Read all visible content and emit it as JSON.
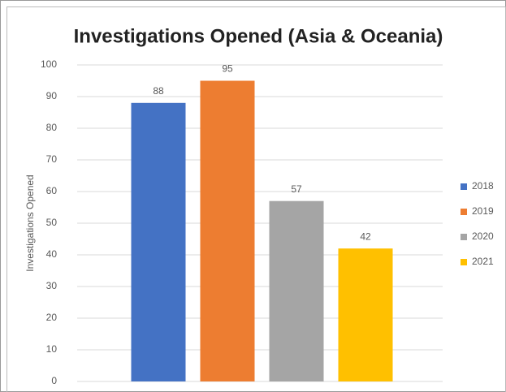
{
  "chart_data": {
    "type": "bar",
    "title": "Investigations Opened (Asia & Oceania)",
    "y_label": "Investigations Opened",
    "categories": [
      null
    ],
    "series": [
      {
        "name": "2018",
        "color": "#4472c4",
        "values": [
          88
        ]
      },
      {
        "name": "2019",
        "color": "#ed7d31",
        "values": [
          95
        ]
      },
      {
        "name": "2020",
        "color": "#a5a5a5",
        "values": [
          57
        ]
      },
      {
        "name": "2021",
        "color": "#ffc000",
        "values": [
          42
        ]
      }
    ],
    "ylim": [
      0,
      100
    ],
    "yticks": [
      0,
      10,
      20,
      30,
      40,
      50,
      60,
      70,
      80,
      90,
      100
    ],
    "grid": true,
    "legend": "right",
    "data_labels": true
  }
}
